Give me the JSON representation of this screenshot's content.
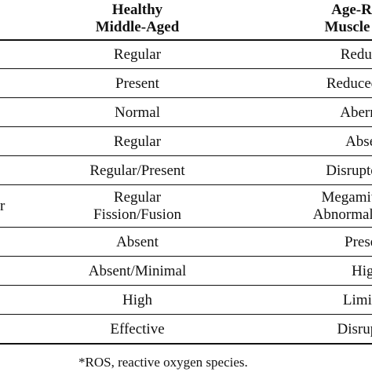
{
  "table": {
    "headers": {
      "col1": [
        "Healthy",
        "Middle-Aged"
      ],
      "col2": [
        "Age-Relate",
        "Muscle Disea"
      ]
    },
    "rows": [
      {
        "label": "",
        "col1": [
          "Regular"
        ],
        "col2": [
          "Reduced"
        ]
      },
      {
        "label": "",
        "col1": [
          "Present"
        ],
        "col2": [
          "Reduced/Abs"
        ]
      },
      {
        "label": "",
        "col1": [
          "Normal"
        ],
        "col2": [
          "Aberrant"
        ]
      },
      {
        "label": "",
        "col1": [
          "Regular"
        ],
        "col2": [
          "Absent"
        ]
      },
      {
        "label": "",
        "col1": [
          "Regular/Present"
        ],
        "col2": [
          "Disrupted/Ab"
        ]
      },
      {
        "label": "r",
        "col1": [
          "Regular",
          "Fission/Fusion"
        ],
        "col2": [
          "Megamitochon",
          "Abnormal Fission"
        ]
      },
      {
        "label": "",
        "col1": [
          "Absent"
        ],
        "col2": [
          "Present"
        ]
      },
      {
        "label": "",
        "col1": [
          "Absent/Minimal"
        ],
        "col2": [
          "High"
        ]
      },
      {
        "label": "",
        "col1": [
          "High"
        ],
        "col2": [
          "Limited"
        ]
      },
      {
        "label": "",
        "col1": [
          "Effective"
        ],
        "col2": [
          "Disrupted"
        ]
      }
    ]
  },
  "footnote": "*ROS, reactive oxygen species."
}
